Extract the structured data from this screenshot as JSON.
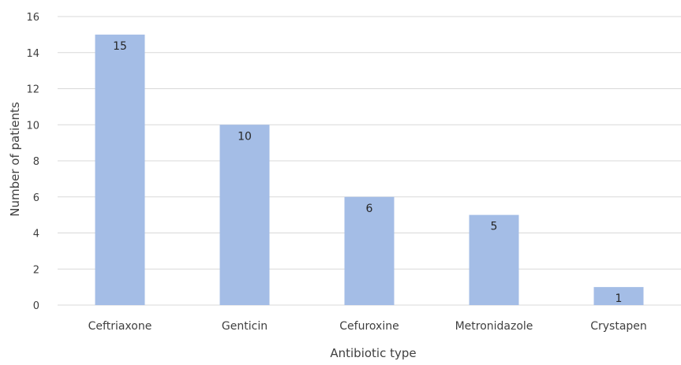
{
  "chart_data": {
    "type": "bar",
    "categories": [
      "Ceftriaxone",
      "Genticin",
      "Cefuroxine",
      "Metronidazole",
      "Crystapen"
    ],
    "values": [
      15,
      10,
      6,
      5,
      1
    ],
    "title": "",
    "xlabel": "Antibiotic type",
    "ylabel": "Number of patients",
    "ylim": [
      0,
      16
    ],
    "yticks": [
      0,
      2,
      4,
      6,
      8,
      10,
      12,
      14,
      16
    ],
    "grid": true,
    "legend": "none",
    "bar_color": "#a4bde6",
    "grid_color": "#d9d9d9"
  }
}
